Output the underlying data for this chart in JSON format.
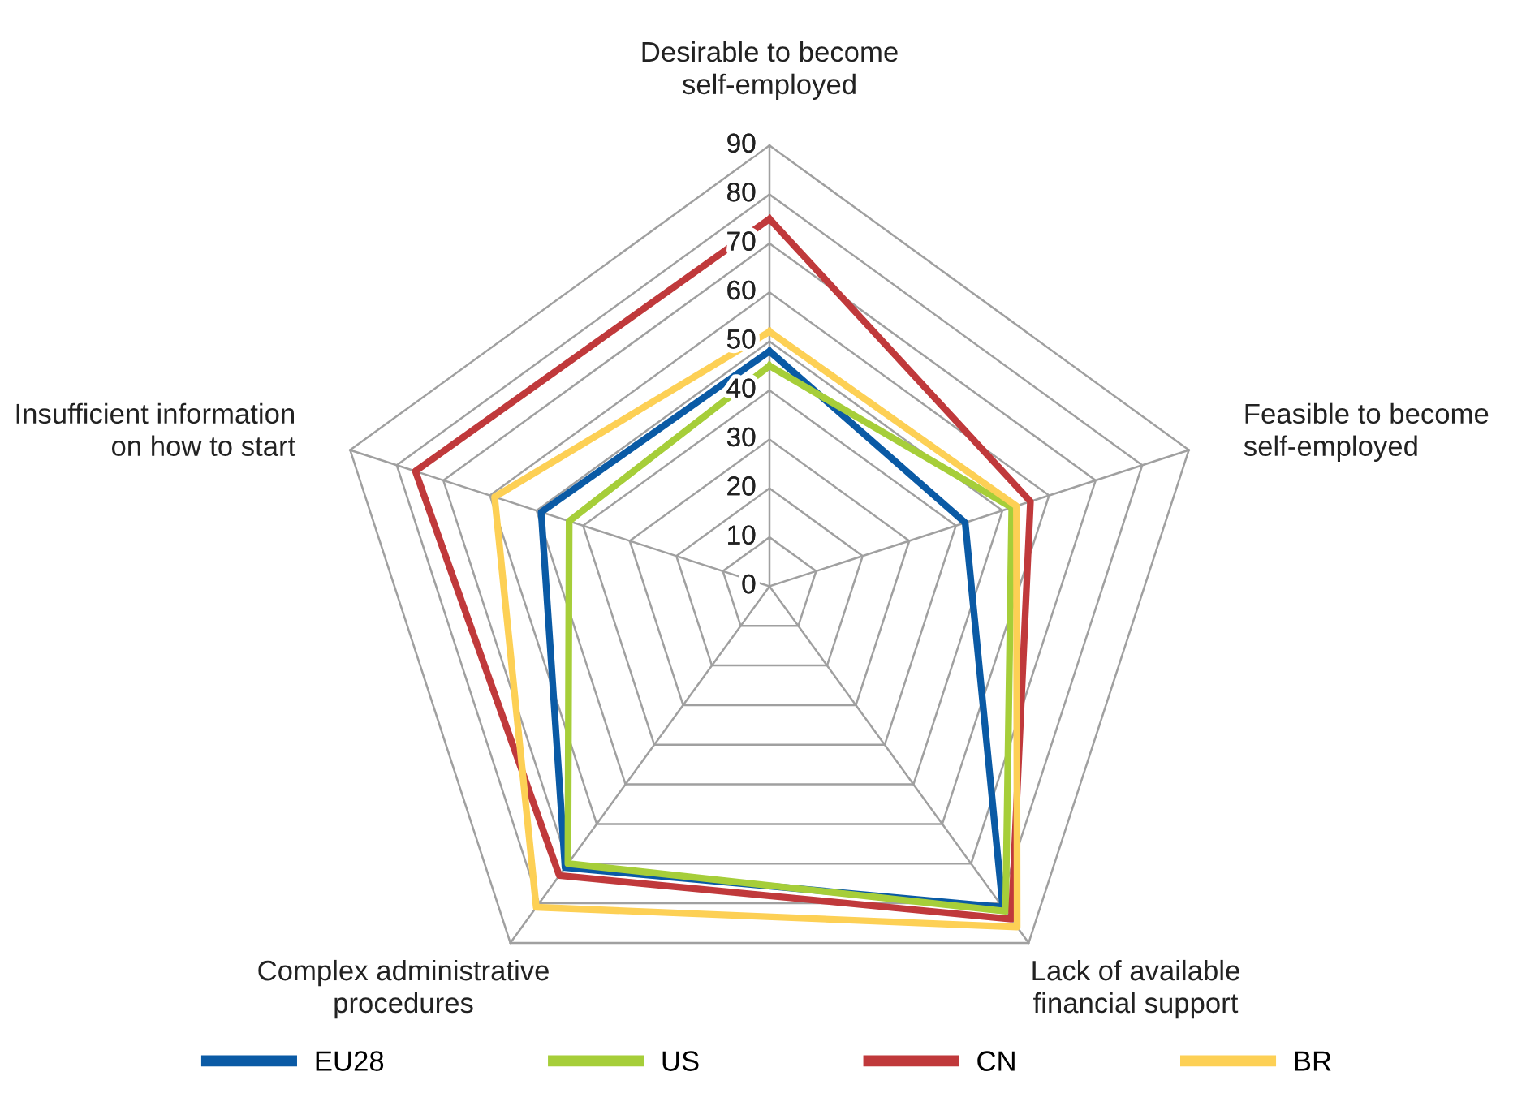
{
  "chart_data": {
    "type": "radar",
    "categories": [
      "Desirable to become\nself-employed",
      "Feasible to become\nself-employed",
      "Lack of available\nfinancial support",
      "Complex administrative\nprocedures",
      "Insufficient information\non how to start"
    ],
    "ylim": [
      0,
      90
    ],
    "yticks": [
      0,
      10,
      20,
      30,
      40,
      50,
      60,
      70,
      80,
      90
    ],
    "grid": true,
    "legend": "bottom",
    "series": [
      {
        "name": "EU28",
        "color": "#0a5aa5",
        "values": [
          48,
          42,
          81,
          71,
          49
        ]
      },
      {
        "name": "US",
        "color": "#a6ce39",
        "values": [
          45,
          52,
          82,
          70,
          43
        ]
      },
      {
        "name": "CN",
        "color": "#c0393b",
        "values": [
          75,
          56,
          84,
          73,
          76
        ]
      },
      {
        "name": "BR",
        "color": "#fdd055",
        "values": [
          52,
          53,
          86,
          81,
          59
        ]
      }
    ]
  }
}
